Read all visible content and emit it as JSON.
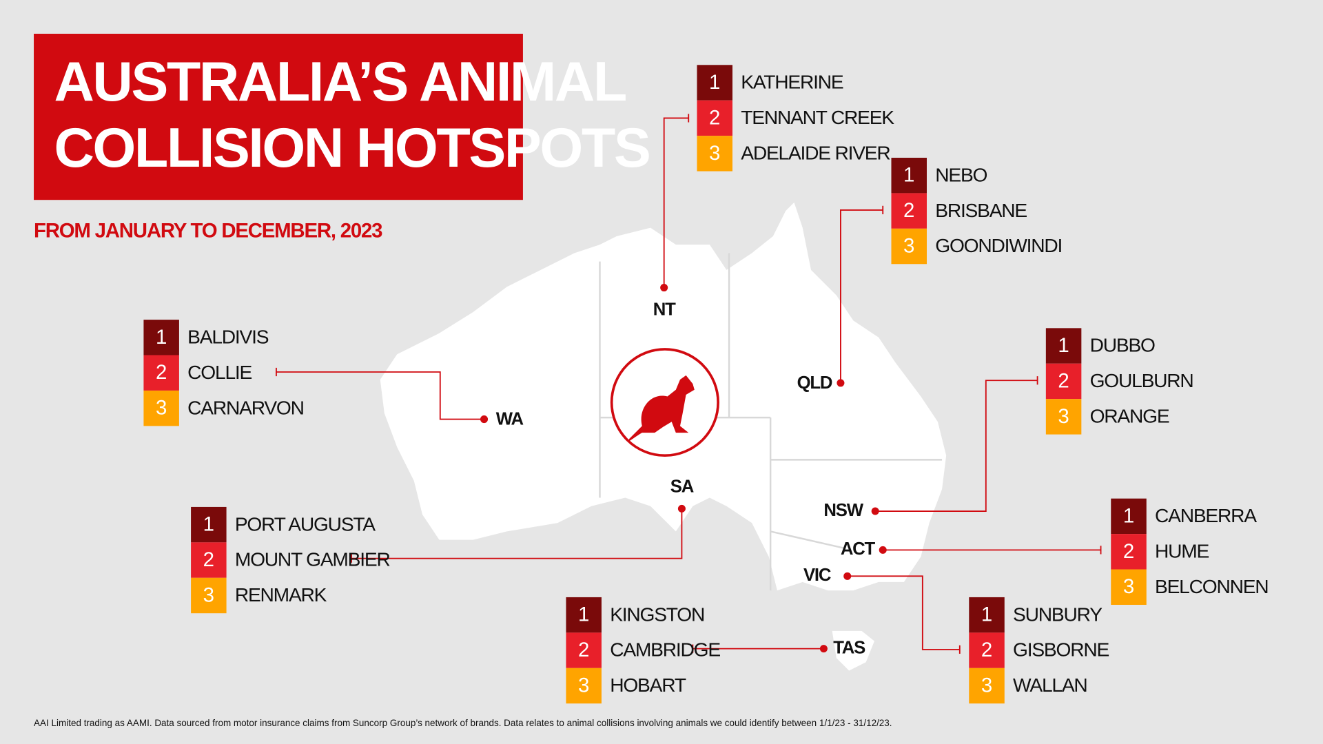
{
  "title": [
    "AUSTRALIA’S ANIMAL",
    "COLLISION HOTSPOTS"
  ],
  "subtitle": "FROM JANUARY TO DECEMBER, 2023",
  "footnote": "AAI Limited trading as AAMI. Data sourced from motor insurance claims from Suncorp Group’s network of brands. Data relates to animal collisions involving animals we could identify between 1/1/23 - 31/12/23.",
  "regions": [
    {
      "label": "NT",
      "hotspots": [
        {
          "rank": 1,
          "name": "KATHERINE"
        },
        {
          "rank": 2,
          "name": "TENNANT CREEK"
        },
        {
          "rank": 3,
          "name": "ADELAIDE RIVER"
        }
      ]
    },
    {
      "label": "QLD",
      "hotspots": [
        {
          "rank": 1,
          "name": "NEBO"
        },
        {
          "rank": 2,
          "name": "BRISBANE"
        },
        {
          "rank": 3,
          "name": "GOONDIWINDI"
        }
      ]
    },
    {
      "label": "WA",
      "hotspots": [
        {
          "rank": 1,
          "name": "BALDIVIS"
        },
        {
          "rank": 2,
          "name": "COLLIE"
        },
        {
          "rank": 3,
          "name": "CARNARVON"
        }
      ]
    },
    {
      "label": "NSW",
      "hotspots": [
        {
          "rank": 1,
          "name": "DUBBO"
        },
        {
          "rank": 2,
          "name": "GOULBURN"
        },
        {
          "rank": 3,
          "name": "ORANGE"
        }
      ]
    },
    {
      "label": "SA",
      "hotspots": [
        {
          "rank": 1,
          "name": "PORT AUGUSTA"
        },
        {
          "rank": 2,
          "name": "MOUNT GAMBIER"
        },
        {
          "rank": 3,
          "name": "RENMARK"
        }
      ]
    },
    {
      "label": "ACT",
      "hotspots": [
        {
          "rank": 1,
          "name": "CANBERRA"
        },
        {
          "rank": 2,
          "name": "HUME"
        },
        {
          "rank": 3,
          "name": "BELCONNEN"
        }
      ]
    },
    {
      "label": "VIC",
      "hotspots": [
        {
          "rank": 1,
          "name": "SUNBURY"
        },
        {
          "rank": 2,
          "name": "GISBORNE"
        },
        {
          "rank": 3,
          "name": "WALLAN"
        }
      ]
    },
    {
      "label": "TAS",
      "hotspots": [
        {
          "rank": 1,
          "name": "KINGSTON"
        },
        {
          "rank": 2,
          "name": "CAMBRIDGE"
        },
        {
          "rank": 3,
          "name": "HOBART"
        }
      ]
    }
  ]
}
